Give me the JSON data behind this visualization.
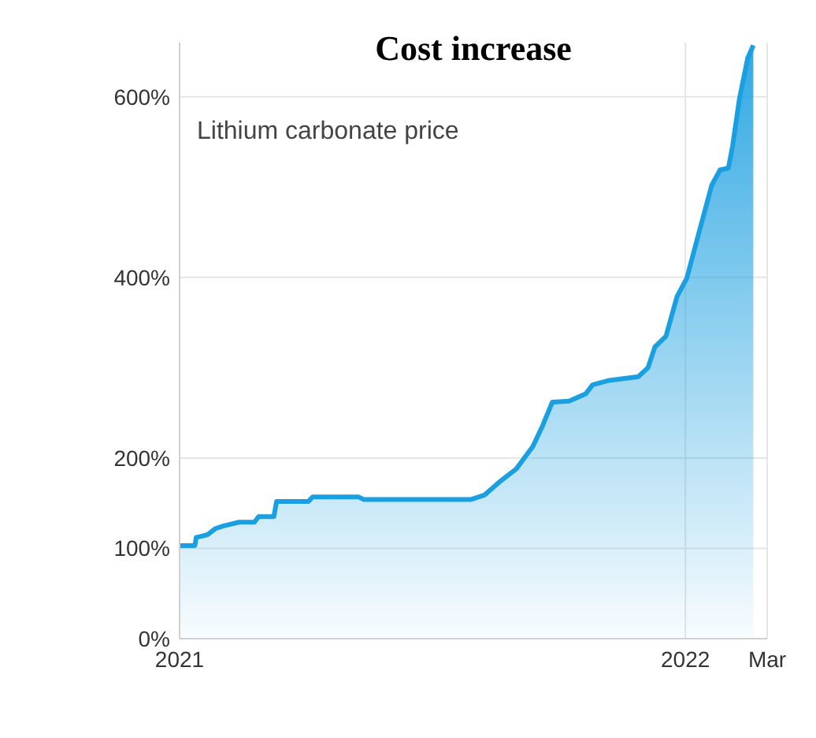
{
  "chart_data": {
    "type": "area",
    "title": "Cost increase",
    "annotations": [
      "Lithium carbonate price"
    ],
    "x": [
      "2021-01-01",
      "2021-01-12",
      "2021-01-13",
      "2021-01-21",
      "2021-01-27",
      "2021-02-02",
      "2021-02-13",
      "2021-02-24",
      "2021-02-27",
      "2021-03-10",
      "2021-03-12",
      "2021-04-04",
      "2021-04-07",
      "2021-05-10",
      "2021-05-14",
      "2021-07-30",
      "2021-08-09",
      "2021-08-21",
      "2021-09-01",
      "2021-09-13",
      "2021-09-20",
      "2021-09-27",
      "2021-10-09",
      "2021-10-21",
      "2021-10-26",
      "2021-11-07",
      "2021-11-28",
      "2021-12-05",
      "2021-12-10",
      "2021-12-18",
      "2021-12-26",
      "2022-01-02",
      "2022-01-11",
      "2022-01-20",
      "2022-01-26",
      "2022-02-01",
      "2022-02-04",
      "2022-02-09",
      "2022-02-15",
      "2022-02-19"
    ],
    "series": [
      {
        "color": "#1a9fe0",
        "values": [
          103,
          103,
          112,
          115,
          122,
          125,
          129,
          129,
          135,
          135,
          152,
          152,
          157,
          157,
          154,
          154,
          159,
          175,
          188,
          213,
          236,
          262,
          263,
          271,
          281,
          286,
          290,
          300,
          323,
          335,
          379,
          399,
          451,
          502,
          519,
          521,
          545,
          598,
          643,
          657
        ]
      }
    ],
    "xlim": [
      "2021-01-01",
      "2022-03-01"
    ],
    "xticks": [
      {
        "value": "2021-01-01",
        "label": "2021"
      },
      {
        "value": "2022-01-01",
        "label": "2022"
      },
      {
        "value": "2022-03-01",
        "label": "Mar"
      }
    ],
    "ylim": [
      0,
      660
    ],
    "yticks": [
      {
        "value": 0,
        "label": "0%"
      },
      {
        "value": 100,
        "label": "100%"
      },
      {
        "value": 200,
        "label": "200%"
      },
      {
        "value": 400,
        "label": "400%"
      },
      {
        "value": 600,
        "label": "600%"
      }
    ],
    "grid": true
  }
}
